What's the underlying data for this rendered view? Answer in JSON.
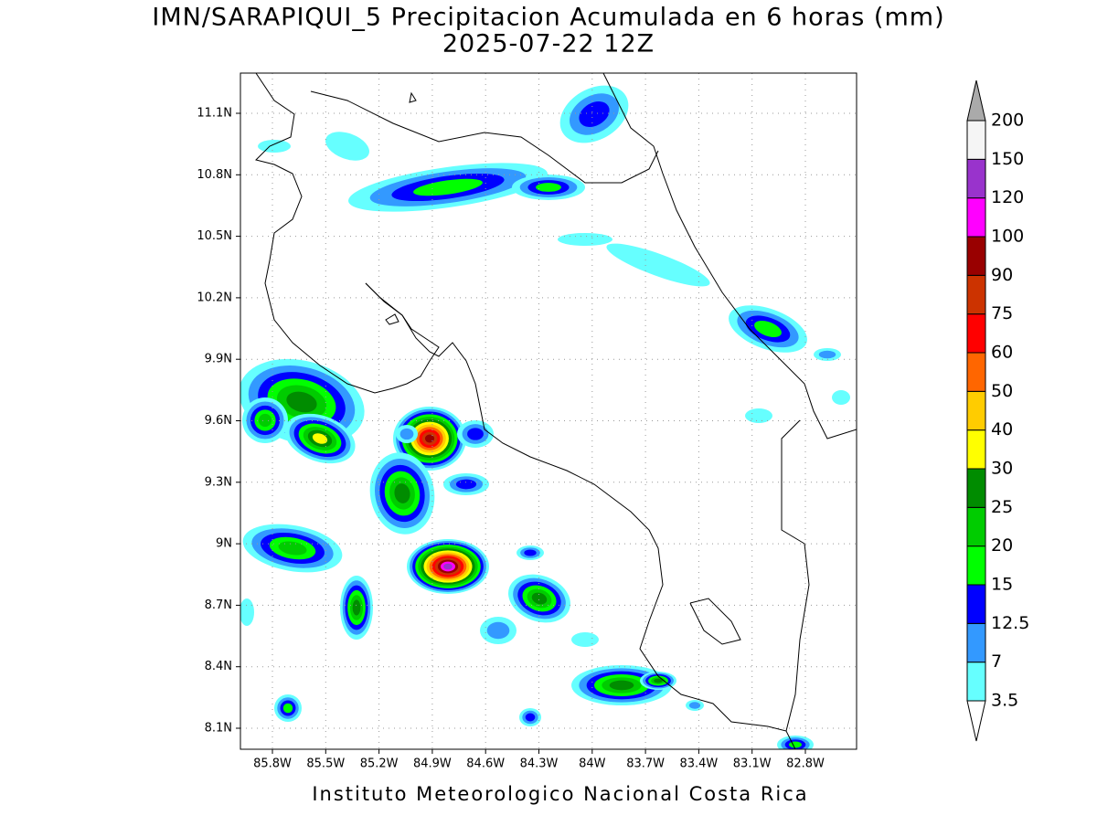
{
  "header": {
    "title": "IMN/SARAPIQUI_5 Precipitacion Acumulada en 6 horas (mm)",
    "subtitle": "2025-07-22 12Z"
  },
  "map": {
    "lat_labels": [
      "11.1N",
      "10.8N",
      "10.5N",
      "10.2N",
      "9.9N",
      "9.6N",
      "9.3N",
      "9N",
      "8.7N",
      "8.4N",
      "8.1N"
    ],
    "lon_labels": [
      "85.8W",
      "85.5W",
      "85.2W",
      "84.9W",
      "84.6W",
      "84.3W",
      "84W",
      "83.7W",
      "83.4W",
      "83.1W",
      "82.8W"
    ]
  },
  "colorbar": {
    "levels": [
      3.5,
      7,
      12.5,
      15,
      20,
      25,
      30,
      40,
      50,
      60,
      75,
      90,
      100,
      120,
      150,
      200
    ],
    "colors": [
      "#66ffff",
      "#3399ff",
      "#0000ff",
      "#00ff00",
      "#00cc00",
      "#008c00",
      "#ffff00",
      "#ffcc00",
      "#ff6600",
      "#ff0000",
      "#cc3300",
      "#990000",
      "#ff00ff",
      "#9933cc",
      "#f5f5f5"
    ],
    "over_color": "#aaaaaa",
    "under_color": "#ffffff"
  },
  "footer": "Instituto Meteorologico Nacional Costa Rica"
}
